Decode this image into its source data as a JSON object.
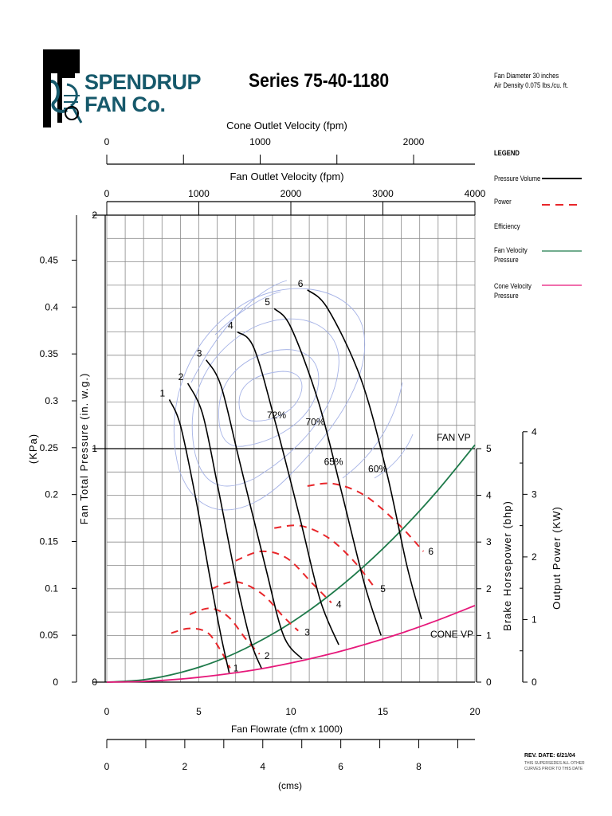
{
  "header": {
    "brand_line1": "SPENDRUP",
    "brand_line2": "FAN Co.",
    "title": "Series 75-40-1180",
    "note_line1": "Fan Diameter 30 inches",
    "note_line2": "Air Density 0.075 lbs./cu. ft."
  },
  "footer": {
    "rev": "REV. DATE: 6/21/04",
    "supersede_line1": "THIS SUPERSEDES ALL OTHER",
    "supersede_line2": "CURVES PRIOR TO THIS DATE"
  },
  "legend": {
    "title": "LEGEND",
    "items": [
      {
        "label": "Pressure Volume",
        "color": "#000000",
        "style": "solid"
      },
      {
        "label": "Power",
        "color": "#e8262a",
        "style": "dashed"
      },
      {
        "label": "Efficiency",
        "color": "#a6b3e6",
        "style": "thin"
      },
      {
        "label": "Fan Velocity Pressure",
        "color": "#1e7a4a",
        "style": "solid"
      },
      {
        "label": "Cone Velocity Pressure",
        "color": "#e6187a",
        "style": "solid"
      }
    ]
  },
  "colors": {
    "pressure": "#000000",
    "power": "#e8262a",
    "efficiency": "#a6b3e6",
    "fan_vp": "#1e7a4a",
    "cone_vp": "#e6187a",
    "grid": "#8a8a8a",
    "brand": "#16596b"
  },
  "chart_data": {
    "type": "line",
    "grid": true,
    "xlabel": "Fan Flowrate (cfm x 1000)",
    "xlim": [
      0,
      20
    ],
    "x_ticks": [
      "0",
      "5",
      "10",
      "15",
      "20"
    ],
    "secondary_x_bottom": {
      "label": "(cms)",
      "ticks": [
        "0",
        "2",
        "4",
        "6",
        "8"
      ],
      "range": [
        0,
        9.44
      ]
    },
    "top_axis_cone": {
      "label": "Cone Outlet Velocity (fpm)",
      "ticks": [
        "0",
        "1000",
        "2000"
      ],
      "range": [
        0,
        2400
      ]
    },
    "top_axis_fan": {
      "label": "Fan Outlet Velocity (fpm)",
      "ticks": [
        "0",
        "1000",
        "2000",
        "3000",
        "4000"
      ],
      "range": [
        0,
        4000
      ]
    },
    "ylabel": "Fan Total Pressure (in. w.g.)",
    "ylim": [
      0,
      2
    ],
    "y_ticks": [
      "0",
      "1",
      "2"
    ],
    "kpa_axis": {
      "label": "(KPa)",
      "ticks": [
        "0",
        "0.05",
        "0.1",
        "0.15",
        "0.2",
        "0.25",
        "0.3",
        "0.35",
        "0.4",
        "0.45"
      ],
      "range": [
        0,
        0.498
      ]
    },
    "bhp_axis": {
      "label": "Brake Horsepower (bhp)",
      "ticks": [
        "0",
        "1",
        "2",
        "3",
        "4",
        "5"
      ],
      "range": [
        0,
        5
      ]
    },
    "kw_axis": {
      "label": "Output Power (KW)",
      "ticks": [
        "0",
        "1",
        "2",
        "3",
        "4"
      ],
      "range": [
        0,
        3.73
      ]
    },
    "pressure_curves": [
      {
        "label": "1",
        "points": [
          [
            3.4,
            1.21
          ],
          [
            4.0,
            1.1
          ],
          [
            4.8,
            0.8
          ],
          [
            5.6,
            0.45
          ],
          [
            6.2,
            0.2
          ],
          [
            6.65,
            0.04
          ]
        ]
      },
      {
        "label": "2",
        "points": [
          [
            4.4,
            1.28
          ],
          [
            5.2,
            1.15
          ],
          [
            6.0,
            0.85
          ],
          [
            7.0,
            0.45
          ],
          [
            7.8,
            0.18
          ],
          [
            8.4,
            0.06
          ]
        ]
      },
      {
        "label": "3",
        "points": [
          [
            5.4,
            1.38
          ],
          [
            6.2,
            1.27
          ],
          [
            7.2,
            0.95
          ],
          [
            8.6,
            0.5
          ],
          [
            9.6,
            0.2
          ],
          [
            10.6,
            0.1
          ]
        ]
      },
      {
        "label": "4",
        "points": [
          [
            7.1,
            1.5
          ],
          [
            8.0,
            1.43
          ],
          [
            9.2,
            1.1
          ],
          [
            10.5,
            0.7
          ],
          [
            11.6,
            0.35
          ],
          [
            12.6,
            0.16
          ]
        ]
      },
      {
        "label": "5",
        "points": [
          [
            9.1,
            1.6
          ],
          [
            10.0,
            1.52
          ],
          [
            11.5,
            1.2
          ],
          [
            12.8,
            0.8
          ],
          [
            14.0,
            0.42
          ],
          [
            14.9,
            0.2
          ]
        ]
      },
      {
        "label": "6",
        "points": [
          [
            10.9,
            1.68
          ],
          [
            12.0,
            1.6
          ],
          [
            13.8,
            1.3
          ],
          [
            15.2,
            0.9
          ],
          [
            16.3,
            0.5
          ],
          [
            17.1,
            0.27
          ]
        ]
      }
    ],
    "power_curves": [
      {
        "label": "1",
        "points": [
          [
            3.5,
            1.05
          ],
          [
            4.5,
            1.15
          ],
          [
            5.5,
            1.05
          ],
          [
            6.3,
            0.6
          ],
          [
            6.7,
            0.3
          ]
        ]
      },
      {
        "label": "2",
        "points": [
          [
            4.5,
            1.45
          ],
          [
            5.6,
            1.58
          ],
          [
            6.6,
            1.4
          ],
          [
            7.6,
            0.9
          ],
          [
            8.3,
            0.6
          ]
        ]
      },
      {
        "label": "3",
        "points": [
          [
            5.7,
            2.0
          ],
          [
            7.0,
            2.15
          ],
          [
            8.4,
            1.9
          ],
          [
            9.6,
            1.4
          ],
          [
            10.4,
            1.1
          ]
        ]
      },
      {
        "label": "4",
        "points": [
          [
            7.0,
            2.6
          ],
          [
            8.4,
            2.8
          ],
          [
            9.8,
            2.65
          ],
          [
            11.2,
            2.1
          ],
          [
            12.2,
            1.7
          ]
        ]
      },
      {
        "label": "5",
        "points": [
          [
            9.1,
            3.3
          ],
          [
            10.5,
            3.35
          ],
          [
            12.0,
            3.1
          ],
          [
            13.4,
            2.6
          ],
          [
            14.6,
            2.0
          ]
        ]
      },
      {
        "label": "6",
        "points": [
          [
            10.9,
            4.2
          ],
          [
            12.3,
            4.25
          ],
          [
            14.0,
            4.0
          ],
          [
            15.8,
            3.4
          ],
          [
            17.2,
            2.8
          ]
        ]
      }
    ],
    "efficiency_labels": [
      {
        "label": "72%",
        "x": 8.7,
        "y": 1.13
      },
      {
        "label": "70%",
        "x": 10.8,
        "y": 1.1
      },
      {
        "label": "65%",
        "x": 11.8,
        "y": 0.93
      },
      {
        "label": "60%",
        "x": 14.2,
        "y": 0.9
      }
    ],
    "fan_vp": {
      "label": "FAN VP",
      "coef_in_wg_per_kcfm2": 0.00254,
      "x": [
        0,
        2,
        4,
        6,
        8,
        10,
        12,
        14,
        16,
        18,
        20
      ],
      "y": [
        0,
        0.01,
        0.041,
        0.091,
        0.163,
        0.254,
        0.366,
        0.498,
        0.65,
        0.823,
        1.016
      ]
    },
    "cone_vp": {
      "label": "CONE VP",
      "coef_in_wg_per_kcfm2": 0.00082,
      "x": [
        0,
        2,
        4,
        6,
        8,
        10,
        12,
        14,
        16,
        18,
        20
      ],
      "y": [
        0,
        0.003,
        0.013,
        0.03,
        0.052,
        0.082,
        0.118,
        0.161,
        0.21,
        0.266,
        0.328
      ]
    }
  }
}
